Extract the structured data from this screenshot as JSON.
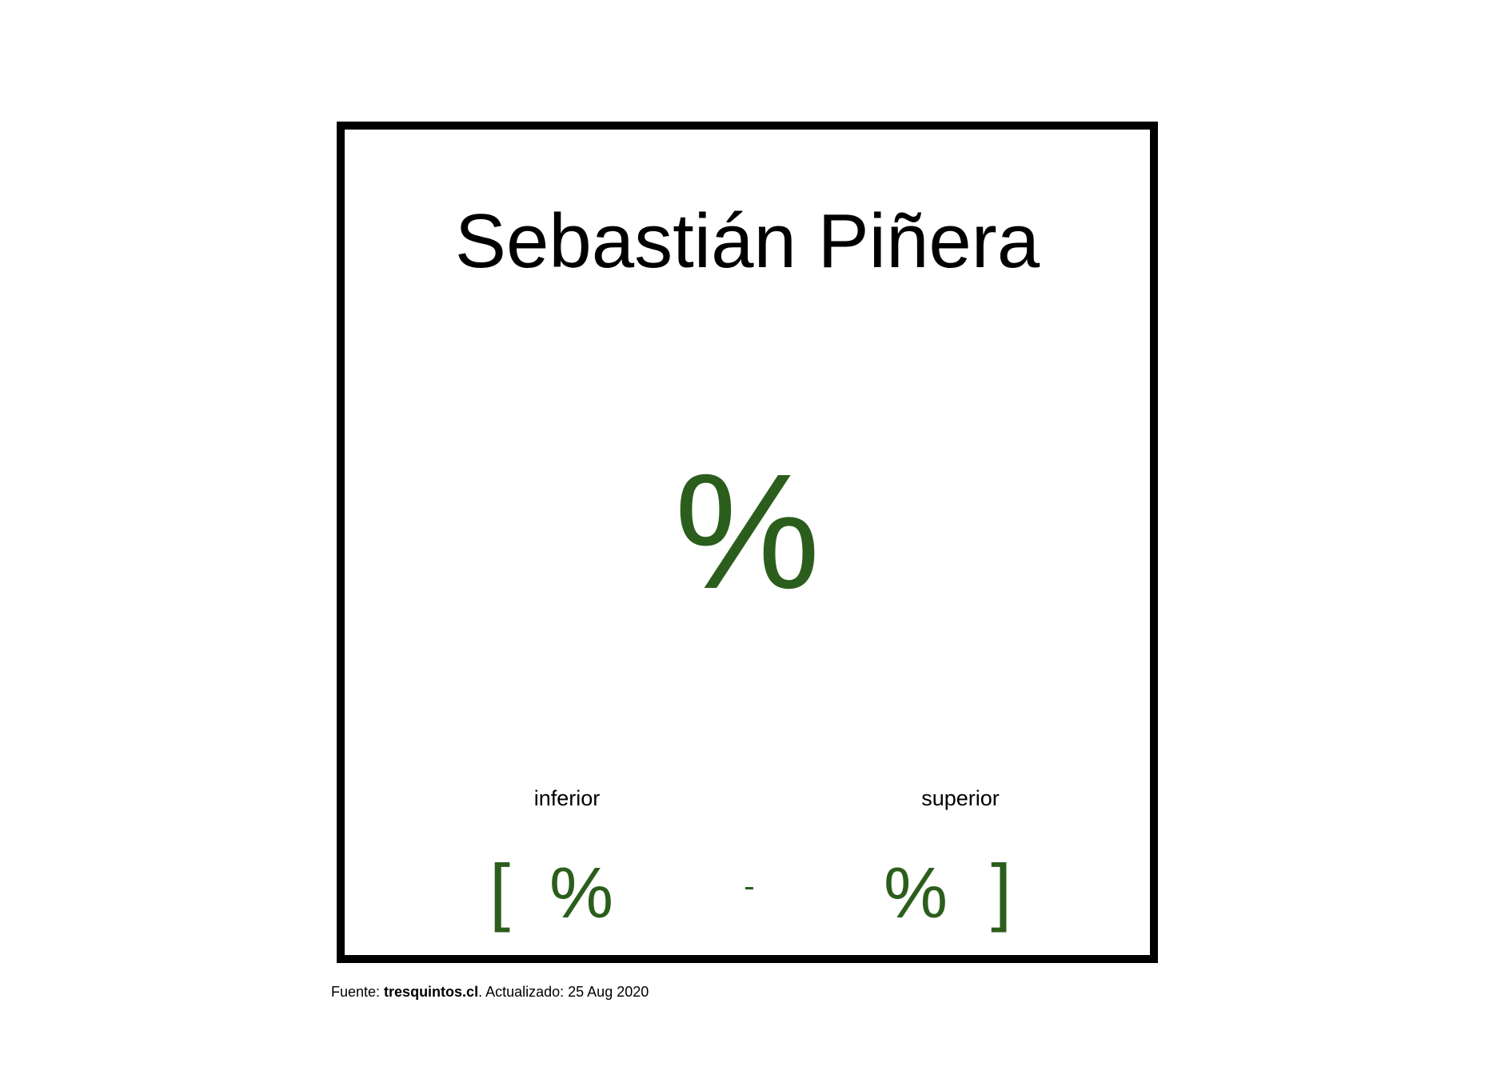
{
  "card": {
    "title": "Sebastián Piñera",
    "main_value": "%",
    "interval": {
      "lower_label": "inferior",
      "upper_label": "superior",
      "open_bracket": "[",
      "close_bracket": "]",
      "lower_value": "%",
      "upper_value": "%"
    }
  },
  "footer": {
    "source_prefix": "Fuente: ",
    "source_name": "tresquintos.cl",
    "updated_text": ". Actualizado: 25 Aug 2020"
  },
  "colors": {
    "accent": "#2b5e1c",
    "text": "#000000",
    "border": "#000000",
    "background": "#ffffff"
  }
}
